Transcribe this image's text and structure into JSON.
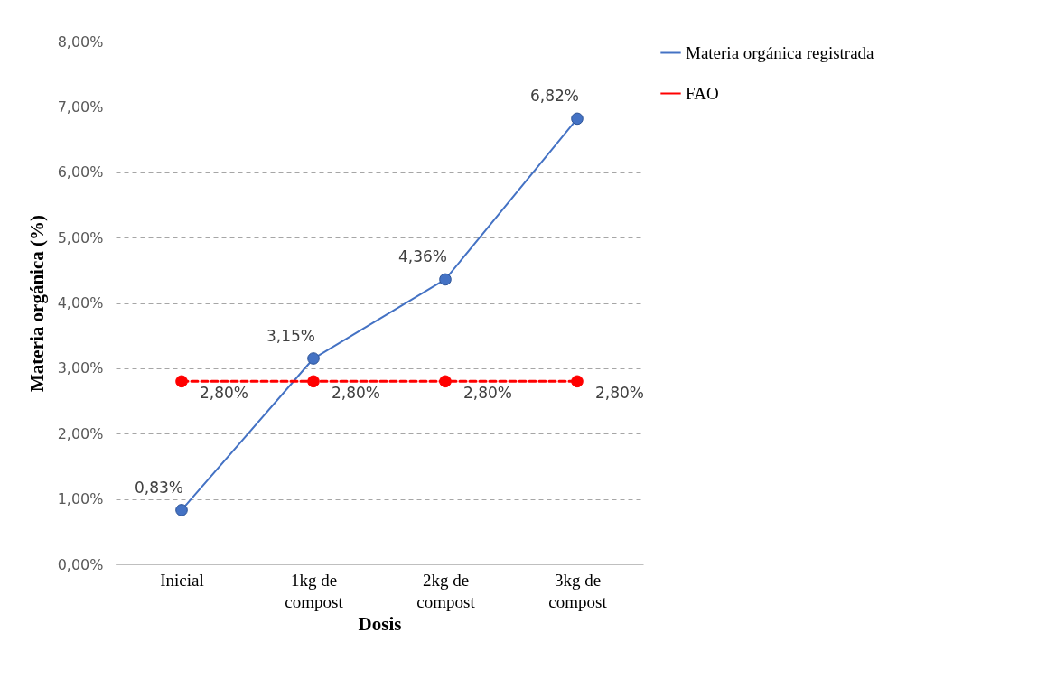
{
  "chart_data": {
    "type": "line",
    "xlabel": "Dosis",
    "ylabel": "Materia orgánica (%)",
    "categories": [
      "Inicial",
      "1kg de compost",
      "2kg de compost",
      "3kg de compost"
    ],
    "series": [
      {
        "name": "Materia orgánica registrada",
        "color": "#4472c4",
        "line_style": "solid",
        "values": [
          0.83,
          3.15,
          4.36,
          6.82
        ],
        "value_labels": [
          "0,83%",
          "3,15%",
          "4,36%",
          "6,82%"
        ]
      },
      {
        "name": "FAO",
        "color": "#ff0000",
        "line_style": "dashed",
        "values": [
          2.8,
          2.8,
          2.8,
          2.8
        ],
        "value_labels": [
          "2,80%",
          "2,80%",
          "2,80%",
          "2,80%"
        ]
      }
    ],
    "ylim": [
      0,
      8
    ],
    "yticks": [
      {
        "value": 0,
        "label": "0,00%"
      },
      {
        "value": 1,
        "label": "1,00%"
      },
      {
        "value": 2,
        "label": "2,00%"
      },
      {
        "value": 3,
        "label": "3,00%"
      },
      {
        "value": 4,
        "label": "4,00%"
      },
      {
        "value": 5,
        "label": "5,00%"
      },
      {
        "value": 6,
        "label": "6,00%"
      },
      {
        "value": 7,
        "label": "7,00%"
      },
      {
        "value": 8,
        "label": "8,00%"
      }
    ],
    "grid": "y",
    "legend": "right",
    "marker": "circle"
  }
}
